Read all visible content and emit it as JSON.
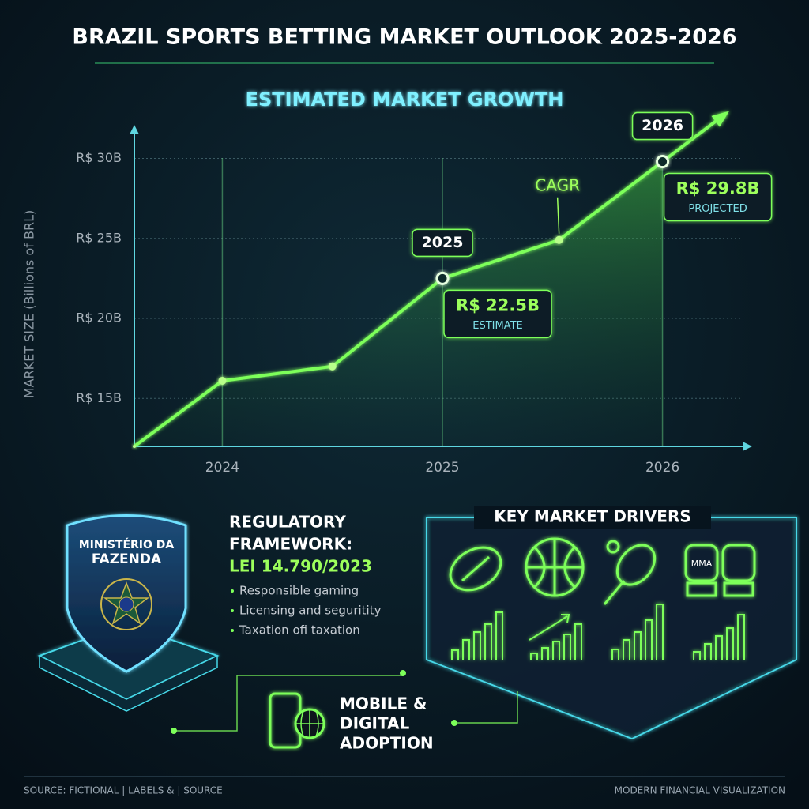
{
  "title": "BRAZIL SPORTS BETTING MARKET OUTLOOK 2025-2026",
  "chart_data": {
    "type": "line",
    "title": "ESTIMATED MARKET GROWTH",
    "y_label": "MARKET SIZE (Billions of BRL)",
    "x": [
      2023.6,
      2024,
      2024.5,
      2025,
      2025.53,
      2026
    ],
    "values": [
      12,
      16.1,
      17,
      22.5,
      24.9,
      29.8
    ],
    "value_labels": [
      null,
      null,
      null,
      "R$ 22.5B",
      null,
      "R$ 29.8B"
    ],
    "annotations": [
      "2025",
      "ESTIMATE",
      "2026",
      "PROJECTED",
      "CAGR"
    ],
    "color": "#7dff5a",
    "xlim": [
      2023.6,
      2026.4
    ],
    "xticks": [
      2024,
      2025,
      2026
    ],
    "ylim": [
      12,
      32
    ],
    "yticks": [
      {
        "value": 15,
        "label": "R$ 15B"
      },
      {
        "value": 20,
        "label": "R$ 20B"
      },
      {
        "value": 25,
        "label": "R$ 25B"
      },
      {
        "value": 30,
        "label": "R$ 30B"
      }
    ],
    "grid": true
  },
  "regulatory": {
    "agency": [
      "MINISTÉRIO DA",
      "FAZENDA"
    ],
    "heading": [
      "REGULATORY",
      "FRAMEWORK:"
    ],
    "law": "LEI 14.790/2023",
    "bullets": [
      "Responsible gaming",
      "Licensing and seguritity",
      "Taxation ofi taxation"
    ]
  },
  "drivers": {
    "title": "KEY MARKET DRIVERS",
    "glove_label": "MMA"
  },
  "mobile": {
    "lines": [
      "MOBILE &",
      "DIGITAL",
      "ADOPTION"
    ]
  },
  "footer": {
    "left": "SOURCE: FICTIONAL | LABELS & | SOURCE",
    "right": "MODERN FINANCIAL VISUALIZATION"
  }
}
